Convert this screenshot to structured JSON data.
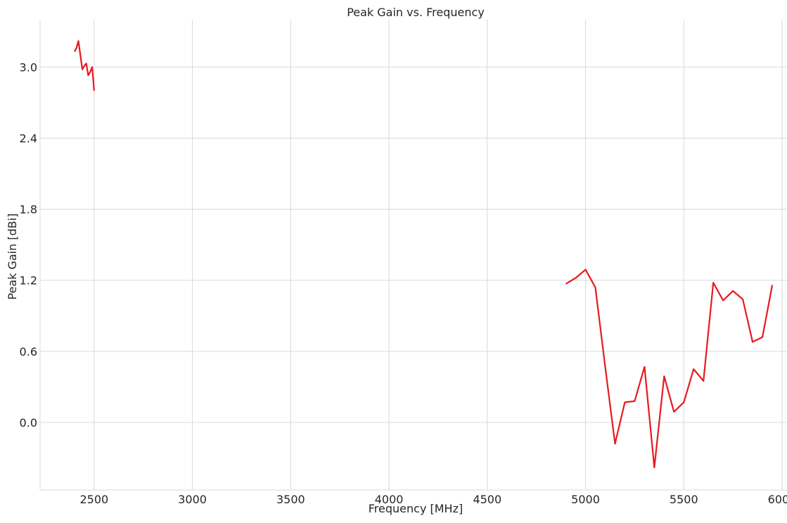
{
  "chart_data": {
    "type": "line",
    "title": "Peak Gain vs. Frequency",
    "xlabel": "Frequency [MHz]",
    "ylabel": "Peak Gain [dBi]",
    "xlim": [
      2225,
      6025
    ],
    "ylim": [
      -0.57,
      3.4
    ],
    "xticks": [
      2500,
      3000,
      3500,
      4000,
      4500,
      5000,
      5500,
      6000
    ],
    "yticks": [
      0.0,
      0.6,
      1.2,
      1.8,
      2.4,
      3.0
    ],
    "xtick_labels": [
      "2500",
      "3000",
      "3500",
      "4000",
      "4500",
      "5000",
      "5500",
      "6000"
    ],
    "ytick_labels": [
      "0.0",
      "0.6",
      "1.2",
      "1.8",
      "2.4",
      "3.0"
    ],
    "grid": true,
    "line_color": "#e8191e",
    "grid_color": "#d9d9d9",
    "series": [
      {
        "segments": [
          {
            "x": [
              2400,
              2410,
              2420,
              2430,
              2440,
              2450,
              2460,
              2470,
              2480,
              2490,
              2500
            ],
            "y": [
              3.13,
              3.16,
              3.22,
              3.1,
              2.98,
              3.01,
              3.03,
              2.93,
              2.96,
              3.0,
              2.8
            ]
          },
          {
            "x": [
              4900,
              4950,
              5000,
              5050,
              5100,
              5150,
              5200,
              5250,
              5300,
              5350,
              5400,
              5450,
              5500,
              5550,
              5600,
              5650,
              5700,
              5750,
              5800,
              5850,
              5900,
              5950
            ],
            "y": [
              1.17,
              1.22,
              1.29,
              1.14,
              0.47,
              -0.18,
              0.17,
              0.18,
              0.47,
              -0.38,
              0.39,
              0.09,
              0.17,
              0.45,
              0.35,
              1.18,
              1.03,
              1.11,
              1.04,
              0.68,
              0.72,
              1.16
            ]
          }
        ]
      }
    ]
  }
}
